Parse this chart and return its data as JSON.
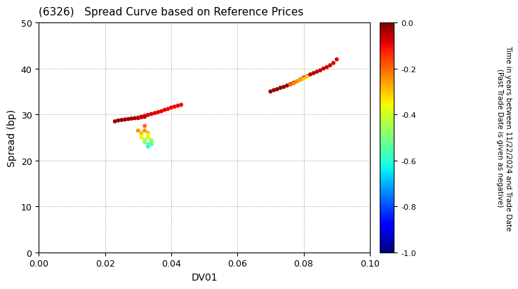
{
  "title": "(6326)   Spread Curve based on Reference Prices",
  "xlabel": "DV01",
  "ylabel": "Spread (bp)",
  "xlim": [
    0.0,
    0.1
  ],
  "ylim": [
    0,
    50
  ],
  "xticks": [
    0.0,
    0.02,
    0.04,
    0.06,
    0.08,
    0.1
  ],
  "yticks": [
    0,
    10,
    20,
    30,
    40,
    50
  ],
  "colorbar_label": "Time in years between 11/22/2024 and Trade Date\n(Past Trade Date is given as negative)",
  "colorbar_ticks": [
    0.0,
    -0.2,
    -0.4,
    -0.6,
    -0.8,
    -1.0
  ],
  "cluster1_dv01": [
    0.023,
    0.024,
    0.025,
    0.026,
    0.027,
    0.028,
    0.029,
    0.03,
    0.031,
    0.032,
    0.03,
    0.031,
    0.032,
    0.033,
    0.034,
    0.035,
    0.036,
    0.037,
    0.038,
    0.039,
    0.04,
    0.041,
    0.042,
    0.043,
    0.032,
    0.032,
    0.033,
    0.033,
    0.033,
    0.034,
    0.034,
    0.034,
    0.033,
    0.033,
    0.032,
    0.032,
    0.031,
    0.031,
    0.031,
    0.03
  ],
  "cluster1_spread": [
    28.5,
    28.7,
    28.8,
    28.9,
    29.0,
    29.1,
    29.2,
    29.3,
    29.4,
    29.5,
    29.2,
    29.5,
    29.7,
    29.9,
    30.1,
    30.3,
    30.5,
    30.7,
    31.0,
    31.2,
    31.5,
    31.7,
    31.9,
    32.1,
    27.5,
    26.5,
    26.0,
    25.5,
    25.0,
    24.5,
    24.0,
    23.5,
    23.0,
    23.5,
    24.0,
    24.5,
    25.0,
    25.5,
    26.0,
    26.5
  ],
  "cluster1_time": [
    -0.02,
    -0.02,
    -0.02,
    -0.02,
    -0.02,
    -0.03,
    -0.03,
    -0.03,
    -0.03,
    -0.03,
    -0.07,
    -0.07,
    -0.07,
    -0.08,
    -0.08,
    -0.09,
    -0.09,
    -0.09,
    -0.09,
    -0.1,
    -0.1,
    -0.1,
    -0.1,
    -0.1,
    -0.2,
    -0.25,
    -0.3,
    -0.35,
    -0.4,
    -0.45,
    -0.5,
    -0.55,
    -0.6,
    -0.55,
    -0.5,
    -0.45,
    -0.4,
    -0.35,
    -0.3,
    -0.25
  ],
  "cluster2_dv01": [
    0.07,
    0.071,
    0.072,
    0.073,
    0.074,
    0.075,
    0.076,
    0.077,
    0.078,
    0.079,
    0.08,
    0.081,
    0.082,
    0.083,
    0.084,
    0.085,
    0.086,
    0.087,
    0.088,
    0.089,
    0.09,
    0.076,
    0.077,
    0.078,
    0.079,
    0.08,
    0.081
  ],
  "cluster2_spread": [
    35.0,
    35.3,
    35.5,
    35.8,
    36.0,
    36.3,
    36.6,
    36.9,
    37.2,
    37.6,
    38.0,
    38.3,
    38.7,
    39.0,
    39.3,
    39.6,
    40.0,
    40.3,
    40.7,
    41.2,
    42.0,
    36.5,
    36.8,
    37.2,
    37.5,
    37.8,
    38.2
  ],
  "cluster2_time": [
    -0.02,
    -0.02,
    -0.02,
    -0.02,
    -0.02,
    -0.03,
    -0.03,
    -0.03,
    -0.04,
    -0.04,
    -0.04,
    -0.05,
    -0.05,
    -0.05,
    -0.06,
    -0.06,
    -0.07,
    -0.07,
    -0.08,
    -0.08,
    -0.09,
    -0.2,
    -0.22,
    -0.25,
    -0.27,
    -0.3,
    -0.32
  ]
}
